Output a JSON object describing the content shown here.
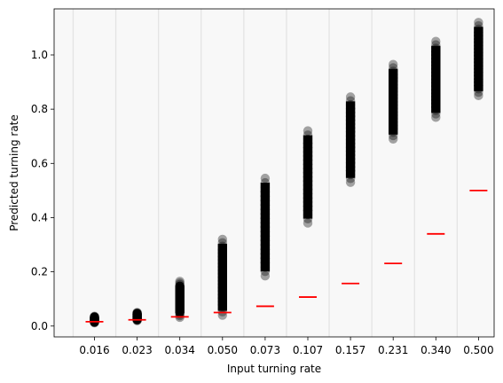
{
  "chart_data": {
    "type": "scatter",
    "title": "",
    "xlabel": "Input turning rate",
    "ylabel": "Predicted turning rate",
    "categories": [
      "0.016",
      "0.023",
      "0.034",
      "0.050",
      "0.073",
      "0.107",
      "0.157",
      "0.231",
      "0.340",
      "0.500"
    ],
    "input_values": [
      0.016,
      0.023,
      0.034,
      0.05,
      0.073,
      0.107,
      0.157,
      0.231,
      0.34,
      0.5
    ],
    "predicted_ranges": [
      [
        0.012,
        0.036
      ],
      [
        0.02,
        0.05
      ],
      [
        0.032,
        0.165
      ],
      [
        0.04,
        0.32
      ],
      [
        0.185,
        0.545
      ],
      [
        0.38,
        0.72
      ],
      [
        0.53,
        0.845
      ],
      [
        0.69,
        0.965
      ],
      [
        0.77,
        1.05
      ],
      [
        0.85,
        1.12
      ]
    ],
    "ylim": [
      -0.04,
      1.17
    ],
    "yticks": [
      "0.0",
      "0.2",
      "0.4",
      "0.6",
      "0.8",
      "1.0"
    ],
    "ytick_values": [
      0,
      0.2,
      0.4,
      0.6,
      0.8,
      1.0
    ],
    "grid": "vertical",
    "colors": {
      "points": "#000000",
      "reference": "#ff0000",
      "background": "#f8f8f8",
      "grid": "#e4e4e4"
    }
  }
}
